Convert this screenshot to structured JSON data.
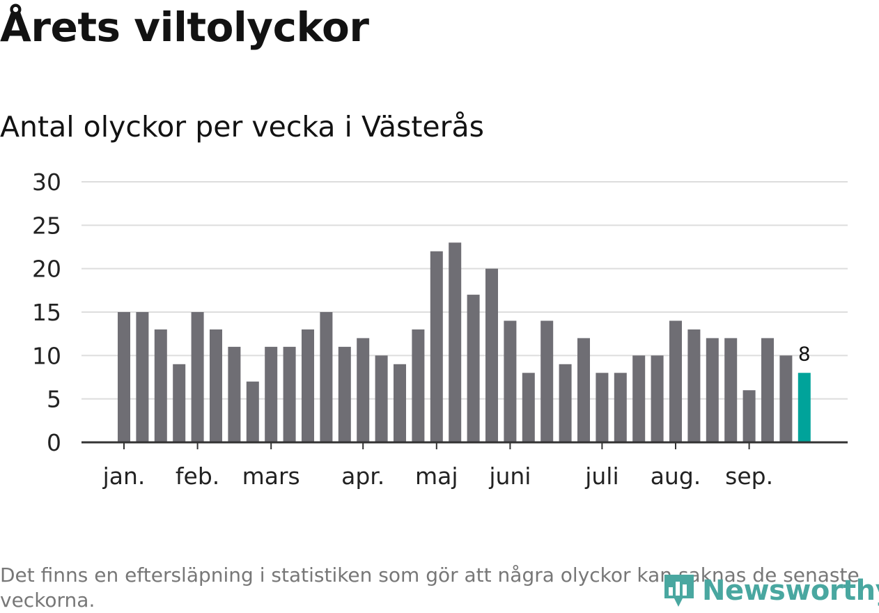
{
  "title": "Årets viltolyckor",
  "subtitle": "Antal olyckor per vecka i Västerås",
  "footnote": "Det finns en eftersläpning i statistiken som gör att några olyckor kan saknas de senaste veckorna.",
  "logo": {
    "text": "Newsworthy",
    "icon": "newsworthy-logo-icon",
    "color": "#49a7a0"
  },
  "chart_data": {
    "type": "bar",
    "title": "Antal olyckor per vecka i Västerås",
    "xlabel": "",
    "ylabel": "",
    "ylim": [
      0,
      30
    ],
    "yticks": [
      0,
      5,
      10,
      15,
      20,
      25,
      30
    ],
    "grid": true,
    "values": [
      15,
      15,
      13,
      9,
      15,
      13,
      11,
      7,
      11,
      11,
      13,
      15,
      11,
      12,
      10,
      9,
      13,
      22,
      23,
      17,
      20,
      14,
      8,
      14,
      9,
      12,
      8,
      8,
      10,
      10,
      14,
      13,
      12,
      12,
      6,
      12,
      10,
      8
    ],
    "month_labels": [
      {
        "label": "jan.",
        "bar_index": 0
      },
      {
        "label": "feb.",
        "bar_index": 4
      },
      {
        "label": "mars",
        "bar_index": 8
      },
      {
        "label": "apr.",
        "bar_index": 13
      },
      {
        "label": "maj",
        "bar_index": 17
      },
      {
        "label": "juni",
        "bar_index": 21
      },
      {
        "label": "juli",
        "bar_index": 26
      },
      {
        "label": "aug.",
        "bar_index": 30
      },
      {
        "label": "sep.",
        "bar_index": 34
      }
    ],
    "highlight": {
      "bar_index": 37,
      "label": "8"
    },
    "colors": {
      "bar": "#6f6e74",
      "highlight": "#00a39a",
      "grid": "#dddddd",
      "axis": "#333333"
    }
  }
}
